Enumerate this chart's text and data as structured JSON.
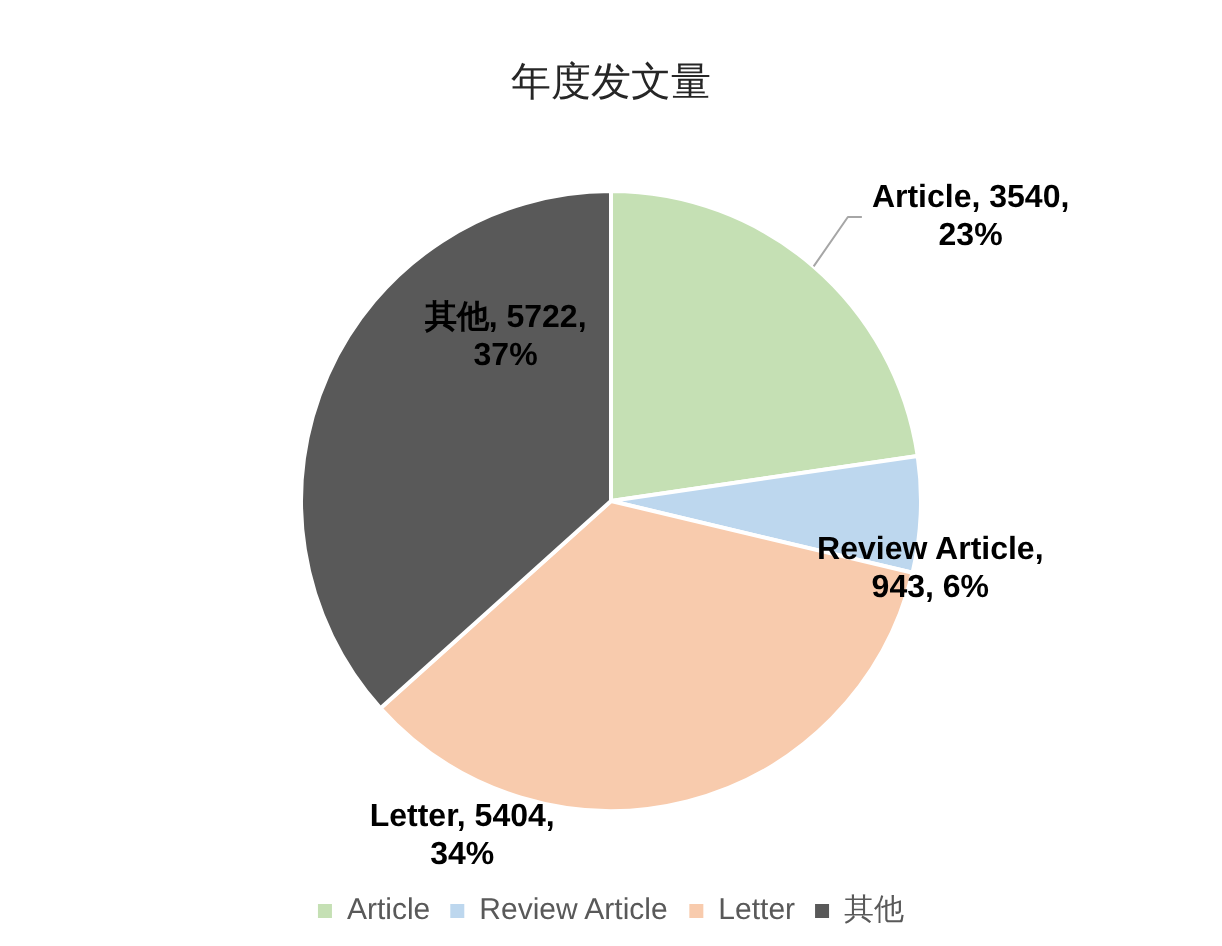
{
  "chart_data": {
    "type": "pie",
    "title": "年度发文量",
    "categories": [
      "Article",
      "Review Article",
      "Letter",
      "其他"
    ],
    "values": [
      3540,
      943,
      5404,
      5722
    ],
    "colors": [
      "#c5e0b4",
      "#bdd7ee",
      "#f8cbad",
      "#595959"
    ],
    "value_labels": [
      "Article, 3540, 23%",
      "Review Article, 943, 6%",
      "Letter, 5404, 34%",
      "其他, 5722, 37%"
    ],
    "legend": "bottom"
  }
}
